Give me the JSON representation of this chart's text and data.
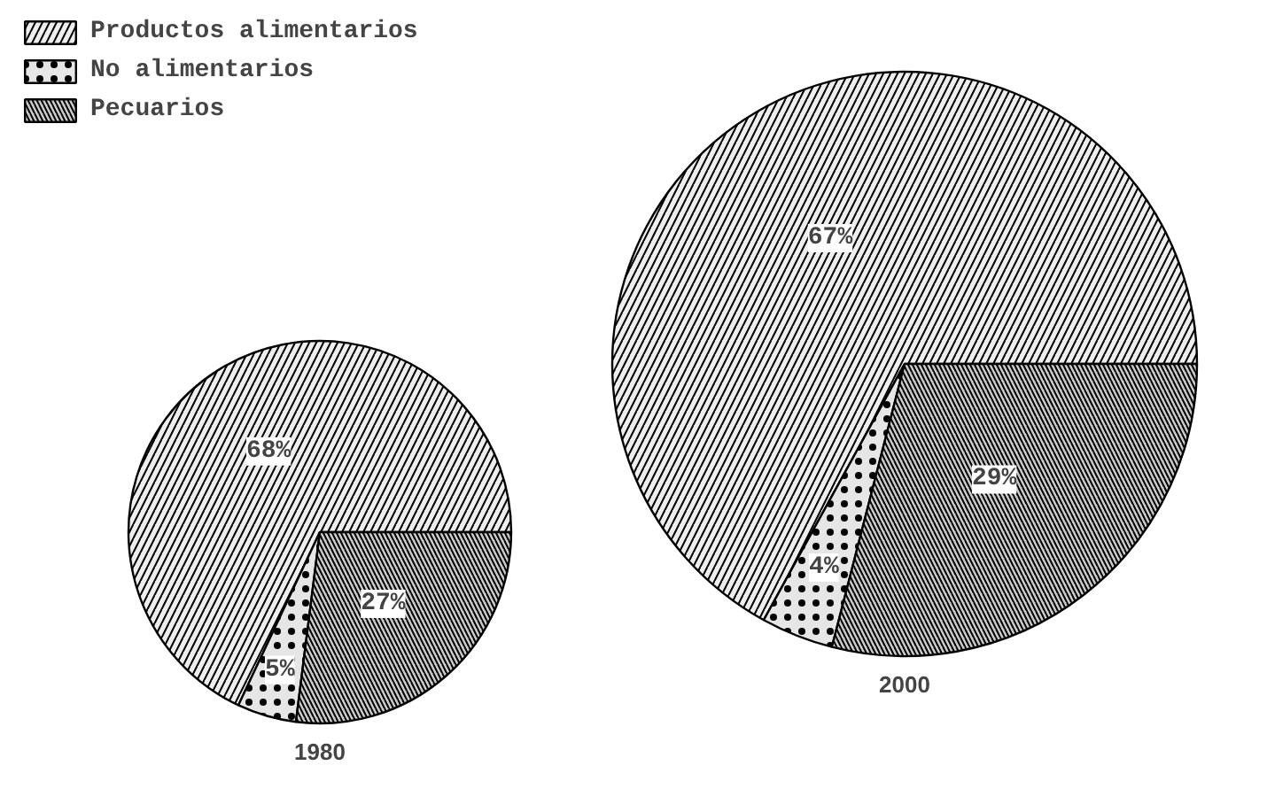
{
  "chart_data": [
    {
      "type": "pie",
      "title": "1980",
      "categories": [
        "Productos alimentarios",
        "No alimentarios",
        "Pecuarios"
      ],
      "values": [
        68,
        5,
        27
      ],
      "colors": [
        "#eeeeee",
        "#e6e6e6",
        "#cccccc"
      ],
      "value_labels": [
        "68%",
        "5%",
        "27%"
      ],
      "legend": "top left"
    },
    {
      "type": "pie",
      "title": "2000",
      "categories": [
        null,
        null,
        null
      ],
      "values": [
        67,
        4,
        29
      ],
      "colors": [
        "#eeeeee",
        "#e6e6e6",
        "#cccccc"
      ],
      "value_labels": [
        "67%",
        "4%",
        "29%"
      ]
    }
  ]
}
